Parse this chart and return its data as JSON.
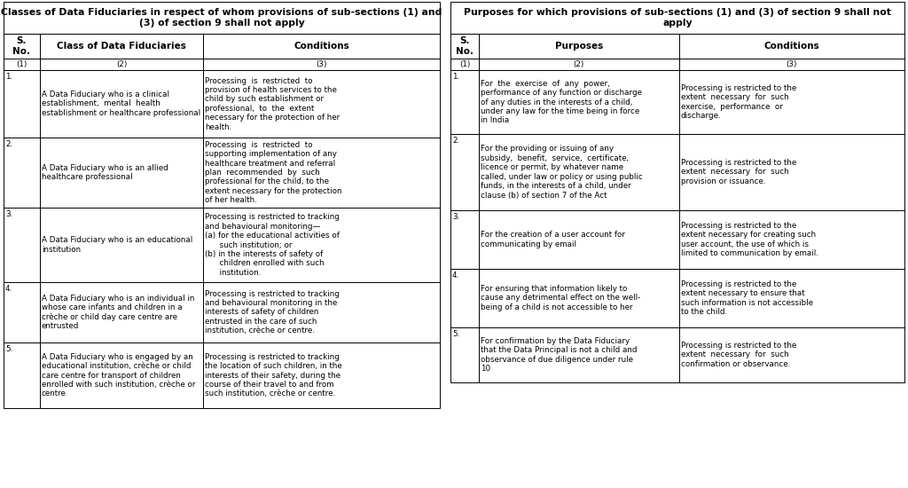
{
  "left_title": "Classes of Data Fiduciaries in respect of whom provisions of sub-sections (1) and\n(3) of section 9 shall not apply",
  "right_title": "Purposes for which provisions of sub-sections (1) and (3) of section 9 shall not\napply",
  "left_table": {
    "headers": [
      "S.\nNo.",
      "Class of Data Fiduciaries",
      "Conditions"
    ],
    "subheaders": [
      "(1)",
      "(2)",
      "(3)"
    ],
    "rows": [
      {
        "no": "1.",
        "col2": "A Data Fiduciary who is a clinical\nestablishment,  mental  health\nestablishment or healthcare professional",
        "col3": "Processing  is  restricted  to\nprovision of health services to the\nchild by such establishment or\nprofessional,  to  the  extent\nnecessary for the protection of her\nhealth."
      },
      {
        "no": "2.",
        "col2": "A Data Fiduciary who is an allied\nhealthcare professional",
        "col3": "Processing  is  restricted  to\nsupporting implementation of any\nhealthcare treatment and referral\nplan  recommended  by  such\nprofessional for the child, to the\nextent necessary for the protection\nof her health."
      },
      {
        "no": "3.",
        "col2": "A Data Fiduciary who is an educational\ninstitution",
        "col3": "Processing is restricted to tracking\nand behavioural monitoring—\n(a) for the educational activities of\n      such institution; or\n(b) in the interests of safety of\n      children enrolled with such\n      institution."
      },
      {
        "no": "4.",
        "col2": "A Data Fiduciary who is an individual in\nwhose care infants and children in a\ncrèche or child day care centre are\nentrusted",
        "col3": "Processing is restricted to tracking\nand behavioural monitoring in the\ninterests of safety of children\nentrusted in the care of such\ninstitution, crèche or centre."
      },
      {
        "no": "5.",
        "col2": "A Data Fiduciary who is engaged by an\neducational institution, crèche or child\ncare centre for transport of children\nenrolled with such institution, crèche or\ncentre",
        "col3": "Processing is restricted to tracking\nthe location of such children, in the\ninterests of their safety, during the\ncourse of their travel to and from\nsuch institution, crèche or centre."
      }
    ]
  },
  "right_table": {
    "headers": [
      "S.\nNo.",
      "Purposes",
      "Conditions"
    ],
    "subheaders": [
      "(1)",
      "(2)",
      "(3)"
    ],
    "rows": [
      {
        "no": "1.",
        "col2": "For  the  exercise  of  any  power,\nperformance of any function or discharge\nof any duties in the interests of a child,\nunder any law for the time being in force\nin India",
        "col3": "Processing is restricted to the\nextent  necessary  for  such\nexercise,  performance  or\ndischarge."
      },
      {
        "no": "2.",
        "col2": "For the providing or issuing of any\nsubsidy,  benefit,  service,  certificate,\nlicence or permit, by whatever name\ncalled, under law or policy or using public\nfunds, in the interests of a child, under\nclause (b) of section 7 of the Act",
        "col3": "Processing is restricted to the\nextent  necessary  for  such\nprovision or issuance."
      },
      {
        "no": "3.",
        "col2": "For the creation of a user account for\ncommunicating by email",
        "col3": "Processing is restricted to the\nextent necessary for creating such\nuser account, the use of which is\nlimited to communication by email."
      },
      {
        "no": "4.",
        "col2": "For ensuring that information likely to\ncause any detrimental effect on the well-\nbeing of a child is not accessible to her",
        "col3": "Processing is restricted to the\nextent necessary to ensure that\nsuch information is not accessible\nto the child."
      },
      {
        "no": "5.",
        "col2": "For confirmation by the Data Fiduciary\nthat the Data Principal is not a child and\nobservance of due diligence under rule\n10",
        "col3": "Processing is restricted to the\nextent  necessary  for  such\nconfirmation or observance."
      }
    ]
  },
  "font_size": 6.3,
  "title_font_size": 7.8,
  "header_font_size": 7.5
}
